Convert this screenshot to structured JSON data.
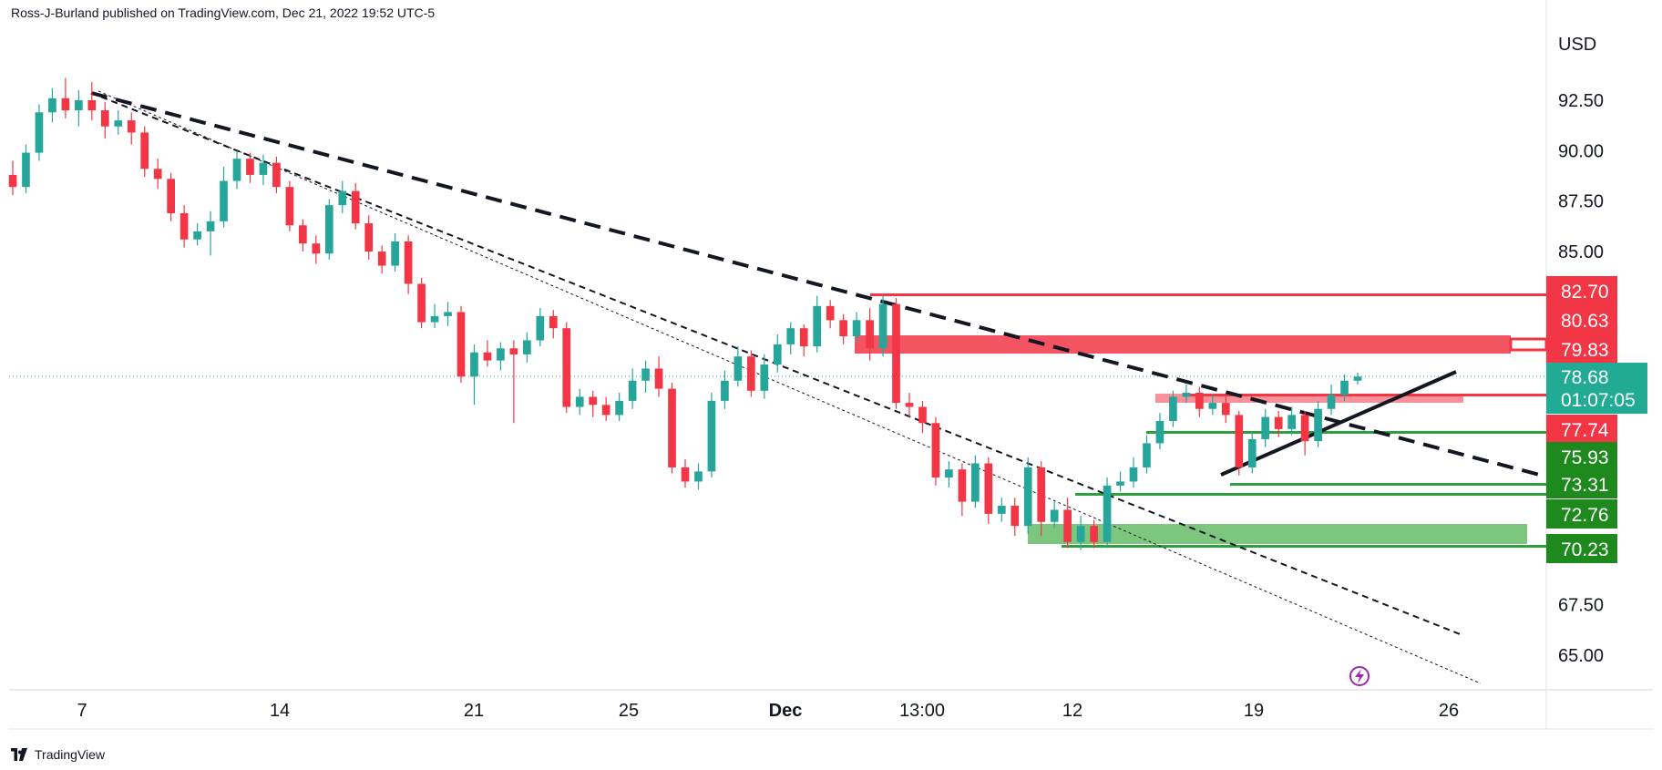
{
  "header": {
    "attribution": "Ross-J-Burland published on TradingView.com, Dec 21, 2022 19:52 UTC-5"
  },
  "footer": {
    "brand": "TradingView",
    "logo_icon": "tradingview-logo-icon"
  },
  "colors": {
    "up": "#26a69a",
    "down": "#f23645",
    "support": "#089981",
    "resistance": "#f23645",
    "badge_green": "#1e8a1e",
    "badge_red": "#f23645",
    "last_price": "#22ab94"
  },
  "chart_data": {
    "type": "candlestick",
    "currency_label": "USD",
    "ylim": [
      62.5,
      96
    ],
    "y_ticks": [
      "92.50",
      "90.00",
      "87.50",
      "85.00",
      "67.50",
      "65.00"
    ],
    "x_ticks": [
      "7",
      "14",
      "21",
      "25",
      "Dec",
      "13:00",
      "12",
      "19",
      "26"
    ],
    "candles": [
      [
        88.8,
        88.2,
        89.5,
        87.8
      ],
      [
        88.2,
        89.9,
        90.3,
        87.9
      ],
      [
        89.9,
        91.9,
        92.3,
        89.5
      ],
      [
        91.9,
        92.6,
        93.1,
        91.4
      ],
      [
        92.6,
        92.0,
        93.6,
        91.6
      ],
      [
        92.0,
        92.5,
        93.0,
        91.2
      ],
      [
        92.5,
        92.0,
        93.4,
        91.5
      ],
      [
        92.0,
        91.2,
        92.4,
        90.6
      ],
      [
        91.2,
        91.5,
        92.0,
        90.8
      ],
      [
        91.5,
        90.9,
        91.9,
        90.3
      ],
      [
        90.9,
        89.1,
        91.2,
        88.7
      ],
      [
        89.1,
        88.6,
        89.6,
        88.1
      ],
      [
        88.6,
        86.9,
        88.9,
        86.5
      ],
      [
        86.9,
        85.6,
        87.3,
        85.2
      ],
      [
        85.6,
        86.0,
        86.4,
        85.3
      ],
      [
        86.0,
        86.5,
        87.0,
        84.8
      ],
      [
        86.5,
        88.5,
        89.2,
        86.2
      ],
      [
        88.5,
        89.6,
        90.0,
        88.1
      ],
      [
        89.6,
        88.8,
        89.9,
        88.4
      ],
      [
        88.8,
        89.4,
        89.8,
        88.3
      ],
      [
        89.4,
        88.2,
        89.7,
        87.9
      ],
      [
        88.2,
        86.3,
        88.5,
        86.0
      ],
      [
        86.3,
        85.4,
        86.6,
        85.0
      ],
      [
        85.4,
        84.9,
        85.8,
        84.4
      ],
      [
        84.9,
        87.3,
        87.6,
        84.6
      ],
      [
        87.3,
        88.0,
        88.5,
        86.9
      ],
      [
        88.0,
        86.4,
        88.4,
        86.1
      ],
      [
        86.4,
        85.0,
        86.8,
        84.6
      ],
      [
        85.0,
        84.3,
        85.3,
        83.9
      ],
      [
        84.3,
        85.5,
        85.9,
        84.0
      ],
      [
        85.5,
        83.4,
        85.8,
        82.9
      ],
      [
        83.4,
        81.5,
        83.7,
        81.2
      ],
      [
        81.5,
        81.8,
        82.4,
        81.2
      ],
      [
        81.8,
        82.0,
        82.5,
        81.3
      ],
      [
        82.0,
        78.8,
        82.3,
        78.5
      ],
      [
        78.8,
        80.0,
        80.4,
        77.4
      ],
      [
        80.0,
        79.6,
        80.6,
        79.3
      ],
      [
        79.6,
        80.2,
        80.5,
        79.1
      ],
      [
        80.2,
        79.9,
        80.6,
        76.5
      ],
      [
        79.9,
        80.6,
        81.0,
        79.5
      ],
      [
        80.6,
        81.8,
        82.2,
        80.3
      ],
      [
        81.8,
        81.2,
        82.1,
        80.7
      ],
      [
        81.2,
        77.3,
        81.5,
        77.0
      ],
      [
        77.3,
        77.8,
        78.2,
        76.9
      ],
      [
        77.8,
        77.4,
        78.1,
        76.8
      ],
      [
        77.4,
        76.9,
        77.8,
        76.6
      ],
      [
        76.9,
        77.6,
        78.0,
        76.6
      ],
      [
        77.6,
        78.6,
        79.2,
        77.2
      ],
      [
        78.6,
        79.2,
        79.6,
        78.0
      ],
      [
        79.2,
        78.2,
        79.8,
        77.8
      ],
      [
        78.2,
        74.3,
        78.5,
        74.0
      ],
      [
        74.3,
        73.6,
        74.7,
        73.3
      ],
      [
        73.6,
        74.1,
        74.5,
        73.2
      ],
      [
        74.1,
        77.6,
        78.0,
        73.8
      ],
      [
        77.6,
        78.6,
        79.1,
        77.2
      ],
      [
        78.6,
        79.8,
        80.3,
        78.3
      ],
      [
        79.8,
        78.1,
        80.1,
        77.8
      ],
      [
        78.1,
        79.4,
        79.9,
        77.7
      ],
      [
        79.4,
        80.4,
        80.9,
        79.0
      ],
      [
        80.4,
        81.2,
        81.5,
        79.9
      ],
      [
        81.2,
        80.3,
        81.4,
        79.8
      ],
      [
        80.3,
        82.3,
        82.8,
        80.0
      ],
      [
        82.3,
        81.6,
        82.6,
        81.2
      ],
      [
        81.6,
        80.8,
        81.9,
        80.4
      ],
      [
        80.8,
        81.6,
        82.0,
        80.5
      ],
      [
        81.6,
        80.2,
        82.2,
        79.6
      ],
      [
        80.2,
        82.4,
        82.8,
        79.8
      ],
      [
        82.4,
        77.5,
        82.7,
        77.2
      ],
      [
        77.5,
        77.3,
        78.0,
        76.8
      ],
      [
        77.3,
        76.5,
        77.6,
        76.0
      ],
      [
        76.5,
        73.8,
        76.8,
        73.4
      ],
      [
        73.8,
        74.2,
        74.6,
        73.3
      ],
      [
        74.2,
        72.6,
        74.5,
        71.9
      ],
      [
        72.6,
        74.5,
        74.9,
        72.3
      ],
      [
        74.5,
        72.0,
        74.8,
        71.5
      ],
      [
        72.0,
        72.4,
        72.8,
        71.6
      ],
      [
        72.4,
        71.4,
        72.8,
        70.9
      ],
      [
        71.4,
        74.3,
        74.8,
        71.0
      ],
      [
        74.3,
        71.6,
        74.6,
        70.9
      ],
      [
        71.6,
        72.2,
        72.6,
        71.3
      ],
      [
        72.2,
        70.6,
        72.8,
        70.3
      ],
      [
        70.6,
        71.4,
        71.9,
        70.2
      ],
      [
        71.4,
        70.6,
        71.7,
        70.3
      ],
      [
        70.6,
        73.4,
        73.8,
        70.3
      ],
      [
        73.4,
        73.6,
        74.1,
        73.1
      ],
      [
        73.6,
        74.3,
        74.8,
        73.3
      ],
      [
        74.3,
        75.5,
        75.9,
        74.0
      ],
      [
        75.5,
        76.6,
        77.0,
        75.2
      ],
      [
        76.6,
        77.8,
        78.1,
        76.3
      ],
      [
        77.8,
        78.0,
        78.4,
        77.5
      ],
      [
        78.0,
        77.2,
        78.3,
        76.8
      ],
      [
        77.2,
        77.5,
        77.9,
        76.9
      ],
      [
        77.5,
        76.9,
        77.8,
        76.5
      ],
      [
        76.9,
        74.3,
        77.1,
        73.9
      ],
      [
        74.3,
        75.7,
        76.1,
        74.0
      ],
      [
        75.7,
        76.8,
        77.2,
        75.3
      ],
      [
        76.8,
        76.2,
        77.1,
        75.8
      ],
      [
        76.2,
        76.9,
        77.3,
        75.9
      ],
      [
        76.9,
        75.6,
        77.1,
        74.9
      ],
      [
        75.6,
        77.2,
        77.6,
        75.3
      ],
      [
        77.2,
        77.9,
        78.4,
        76.9
      ],
      [
        77.9,
        78.6,
        78.9,
        77.6
      ],
      [
        78.6,
        78.8,
        79.0,
        78.4
      ]
    ]
  },
  "levels": {
    "resistance": [
      {
        "price": 82.7,
        "label": "82.70"
      },
      {
        "price": 80.63,
        "label": "80.63"
      },
      {
        "price": 79.83,
        "label": "79.83"
      },
      {
        "price": 77.74,
        "label": "77.74"
      }
    ],
    "support": [
      {
        "price": 75.93,
        "label": "75.93"
      },
      {
        "price": 73.31,
        "label": "73.31"
      },
      {
        "price": 72.76,
        "label": "72.76"
      },
      {
        "price": 70.23,
        "label": "70.23"
      }
    ],
    "last_price": {
      "price": 78.68,
      "label": "78.68",
      "countdown": "01:07:05"
    }
  }
}
